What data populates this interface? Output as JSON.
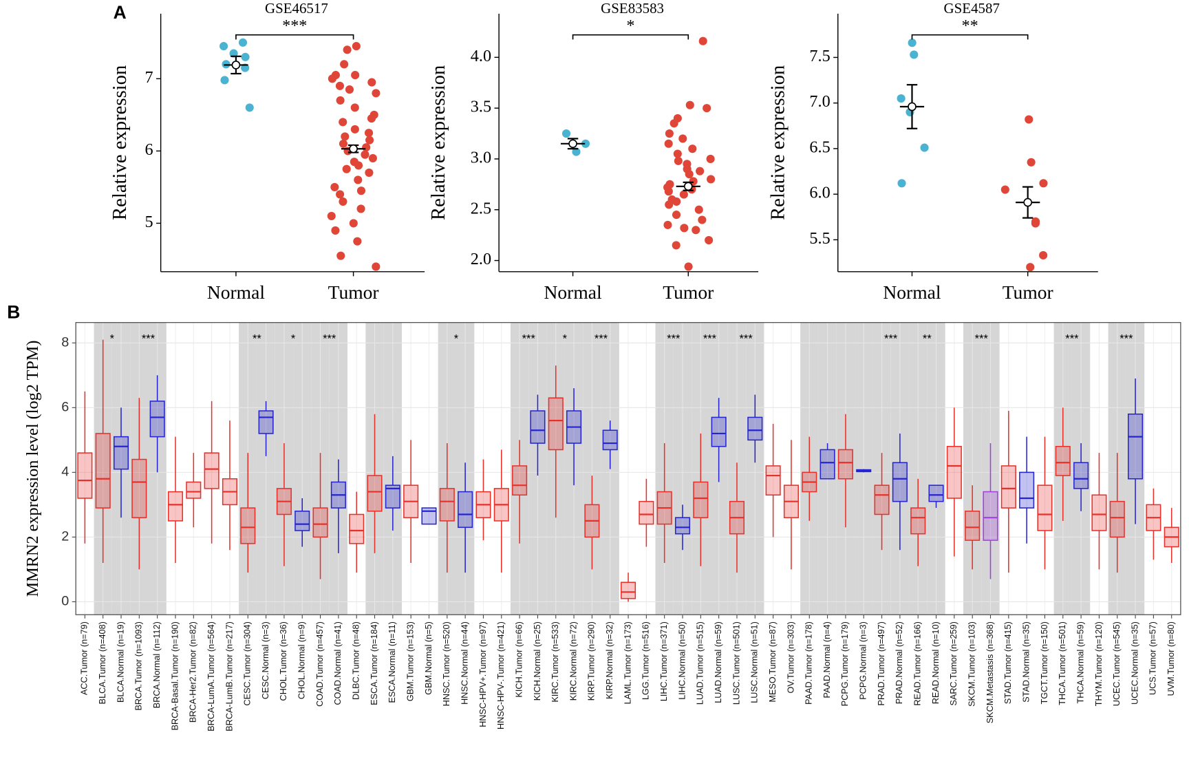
{
  "panel_labels": [
    "A",
    "B"
  ],
  "chart_data": [
    {
      "type": "strip",
      "title": "GSE46517",
      "ylabel": "Relative expression",
      "categories": [
        "Normal",
        "Tumor"
      ],
      "colors": [
        "#4ab3d1",
        "#e04638"
      ],
      "points": [
        [
          7.5,
          7.45,
          7.35,
          7.3,
          7.2,
          7.15,
          6.98,
          6.6
        ],
        [
          7.45,
          7.4,
          7.2,
          7.05,
          7.05,
          7.0,
          6.95,
          6.9,
          6.85,
          6.8,
          6.7,
          6.6,
          6.5,
          6.45,
          6.4,
          6.3,
          6.25,
          6.2,
          6.15,
          6.1,
          6.05,
          6.0,
          5.95,
          5.9,
          5.85,
          5.8,
          5.75,
          5.7,
          5.6,
          5.5,
          5.45,
          5.4,
          5.3,
          5.2,
          5.1,
          5.0,
          4.9,
          4.75,
          4.55,
          4.4
        ]
      ],
      "means": [
        7.19,
        6.03
      ],
      "errors": [
        0.12,
        0.05
      ],
      "significance": "***",
      "ylim": [
        4.33,
        7.9
      ],
      "yticks": [
        5,
        6,
        7
      ]
    },
    {
      "type": "strip",
      "title": "GSE83583",
      "ylabel": "Relative expression",
      "categories": [
        "Normal",
        "Tumor"
      ],
      "colors": [
        "#4ab3d1",
        "#e04638"
      ],
      "points": [
        [
          3.25,
          3.15,
          3.07
        ],
        [
          4.16,
          3.53,
          3.5,
          3.4,
          3.35,
          3.25,
          3.2,
          3.15,
          3.1,
          3.05,
          3.0,
          2.98,
          2.95,
          2.9,
          2.88,
          2.85,
          2.8,
          2.78,
          2.75,
          2.72,
          2.7,
          2.68,
          2.65,
          2.6,
          2.58,
          2.55,
          2.5,
          2.45,
          2.4,
          2.35,
          2.32,
          2.3,
          2.2,
          2.15,
          1.94
        ]
      ],
      "means": [
        3.15,
        2.73
      ],
      "errors": [
        0.05,
        0.04
      ],
      "significance": "*",
      "ylim": [
        1.89,
        4.43
      ],
      "yticks": [
        {
          "value": 2,
          "label": "2.0"
        },
        2.5,
        {
          "value": 3,
          "label": "3.0"
        },
        3.5,
        {
          "value": 4,
          "label": "4.0"
        }
      ]
    },
    {
      "type": "strip",
      "title": "GSE4587",
      "ylabel": "Relative expression",
      "categories": [
        "Normal",
        "Tumor"
      ],
      "colors": [
        "#4ab3d1",
        "#e04638"
      ],
      "points": [
        [
          7.66,
          7.53,
          7.05,
          6.9,
          6.51,
          6.12
        ],
        [
          6.82,
          6.35,
          6.12,
          6.05,
          5.7,
          5.68,
          5.33,
          5.2
        ]
      ],
      "means": [
        6.96,
        5.91
      ],
      "errors": [
        0.24,
        0.17
      ],
      "significance": "**",
      "ylim": [
        5.15,
        7.98
      ],
      "yticks": [
        5.5,
        {
          "value": 6,
          "label": "6.0"
        },
        6.5,
        {
          "value": 7,
          "label": "7.0"
        },
        7.5
      ]
    },
    {
      "type": "box",
      "ylabel": "MMRN2 expression level (log2 TPM)",
      "categories": [
        "ACC.Tumor (n=79)",
        "BLCA.Tumor (n=408)",
        "BLCA.Normal (n=19)",
        "BRCA.Tumor (n=1093)",
        "BRCA.Normal (n=112)",
        "BRCA-Basal.Tumor (n=190)",
        "BRCA-Her2.Tumor (n=82)",
        "BRCA-LumA.Tumor (n=564)",
        "BRCA-LumB.Tumor (n=217)",
        "CESC.Tumor (n=304)",
        "CESC.Normal (n=3)",
        "CHOL.Tumor (n=36)",
        "CHOL.Normal (n=9)",
        "COAD.Tumor (n=457)",
        "COAD.Normal (n=41)",
        "DLBC.Tumor (n=48)",
        "ESCA.Tumor (n=184)",
        "ESCA.Normal (n=11)",
        "GBM.Tumor (n=153)",
        "GBM.Normal (n=5)",
        "HNSC.Tumor (n=520)",
        "HNSC.Normal (n=44)",
        "HNSC-HPV+.Tumor (n=97)",
        "HNSC-HPV-.Tumor (n=421)",
        "KICH.Tumor (n=66)",
        "KICH.Normal (n=25)",
        "KIRC.Tumor (n=533)",
        "KIRC.Normal (n=72)",
        "KIRP.Tumor (n=290)",
        "KIRP.Normal (n=32)",
        "LAML.Tumor (n=173)",
        "LGG.Tumor (n=516)",
        "LIHC.Tumor (n=371)",
        "LIHC.Normal (n=50)",
        "LUAD.Tumor (n=515)",
        "LUAD.Normal (n=59)",
        "LUSC.Tumor (n=501)",
        "LUSC.Normal (n=51)",
        "MESO.Tumor (n=87)",
        "OV.Tumor (n=303)",
        "PAAD.Tumor (n=178)",
        "PAAD.Normal (n=4)",
        "PCPG.Tumor (n=179)",
        "PCPG.Normal (n=3)",
        "PRAD.Tumor (n=497)",
        "PRAD.Normal (n=52)",
        "READ.Tumor (n=166)",
        "READ.Normal (n=10)",
        "SARC.Tumor (n=259)",
        "SKCM.Tumor (n=103)",
        "SKCM.Metastasis (n=368)",
        "STAD.Tumor (n=415)",
        "STAD.Normal (n=35)",
        "TGCT.Tumor (n=150)",
        "THCA.Tumor (n=501)",
        "THCA.Normal (n=59)",
        "THYM.Tumor (n=120)",
        "UCEC.Tumor (n=545)",
        "UCEC.Normal (n=35)",
        "UCS.Tumor (n=57)",
        "UVM.Tumor (n=80)"
      ],
      "colors": [
        "#e8302a",
        "#e8302a",
        "#2424d0",
        "#e8302a",
        "#2424d0",
        "#e8302a",
        "#e8302a",
        "#e8302a",
        "#e8302a",
        "#e8302a",
        "#2424d0",
        "#e8302a",
        "#2424d0",
        "#e8302a",
        "#2424d0",
        "#e8302a",
        "#e8302a",
        "#2424d0",
        "#e8302a",
        "#2424d0",
        "#e8302a",
        "#2424d0",
        "#e8302a",
        "#e8302a",
        "#e8302a",
        "#2424d0",
        "#e8302a",
        "#2424d0",
        "#e8302a",
        "#2424d0",
        "#e8302a",
        "#e8302a",
        "#e8302a",
        "#2424d0",
        "#e8302a",
        "#2424d0",
        "#e8302a",
        "#2424d0",
        "#e8302a",
        "#e8302a",
        "#e8302a",
        "#2424d0",
        "#e8302a",
        "#2424d0",
        "#e8302a",
        "#2424d0",
        "#e8302a",
        "#2424d0",
        "#e8302a",
        "#e8302a",
        "#a040e0",
        "#e8302a",
        "#2424d0",
        "#e8302a",
        "#e8302a",
        "#2424d0",
        "#e8302a",
        "#e8302a",
        "#2424d0",
        "#e8302a",
        "#e8302a"
      ],
      "shaded": [
        false,
        true,
        true,
        true,
        true,
        false,
        false,
        false,
        false,
        true,
        true,
        true,
        true,
        true,
        true,
        false,
        true,
        true,
        false,
        false,
        true,
        true,
        false,
        false,
        true,
        true,
        true,
        true,
        true,
        true,
        false,
        false,
        true,
        true,
        true,
        true,
        true,
        true,
        false,
        false,
        true,
        true,
        true,
        true,
        true,
        true,
        true,
        true,
        false,
        true,
        true,
        false,
        false,
        false,
        true,
        true,
        false,
        true,
        true,
        false,
        false
      ],
      "significance": [
        null,
        "*",
        null,
        "***",
        null,
        null,
        null,
        null,
        null,
        "**",
        null,
        "*",
        null,
        "***",
        null,
        null,
        null,
        null,
        null,
        null,
        "*",
        null,
        null,
        null,
        "***",
        null,
        "*",
        null,
        "***",
        null,
        null,
        null,
        "***",
        null,
        "***",
        null,
        "***",
        null,
        null,
        null,
        null,
        null,
        null,
        null,
        "***",
        null,
        "**",
        null,
        null,
        "***",
        null,
        null,
        null,
        null,
        "***",
        null,
        null,
        "***",
        null,
        null,
        null
      ],
      "boxes": [
        {
          "min": 1.8,
          "q1": 3.2,
          "median": 3.75,
          "q3": 4.6,
          "max": 6.5
        },
        {
          "min": 1.2,
          "q1": 2.9,
          "median": 3.8,
          "q3": 5.2,
          "max": 8.1
        },
        {
          "min": 2.6,
          "q1": 4.1,
          "median": 4.8,
          "q3": 5.1,
          "max": 6.0
        },
        {
          "min": 1.0,
          "q1": 2.6,
          "median": 3.7,
          "q3": 4.4,
          "max": 6.3
        },
        {
          "min": 4.0,
          "q1": 5.1,
          "median": 5.7,
          "q3": 6.2,
          "max": 7.0
        },
        {
          "min": 1.2,
          "q1": 2.5,
          "median": 3.0,
          "q3": 3.4,
          "max": 5.1
        },
        {
          "min": 2.3,
          "q1": 3.2,
          "median": 3.4,
          "q3": 3.7,
          "max": 4.6
        },
        {
          "min": 1.8,
          "q1": 3.5,
          "median": 4.1,
          "q3": 4.6,
          "max": 6.2
        },
        {
          "min": 1.6,
          "q1": 3.0,
          "median": 3.4,
          "q3": 3.8,
          "max": 5.6
        },
        {
          "min": 0.9,
          "q1": 1.8,
          "median": 2.3,
          "q3": 2.9,
          "max": 4.6
        },
        {
          "min": 4.5,
          "q1": 5.2,
          "median": 5.7,
          "q3": 5.9,
          "max": 6.2
        },
        {
          "min": 1.1,
          "q1": 2.7,
          "median": 3.1,
          "q3": 3.5,
          "max": 4.9
        },
        {
          "min": 1.7,
          "q1": 2.2,
          "median": 2.4,
          "q3": 2.8,
          "max": 3.2
        },
        {
          "min": 0.7,
          "q1": 2.0,
          "median": 2.4,
          "q3": 2.9,
          "max": 4.6
        },
        {
          "min": 1.5,
          "q1": 2.9,
          "median": 3.3,
          "q3": 3.7,
          "max": 4.4
        },
        {
          "min": 0.9,
          "q1": 1.8,
          "median": 2.2,
          "q3": 2.7,
          "max": 3.4
        },
        {
          "min": 1.5,
          "q1": 2.8,
          "median": 3.4,
          "q3": 3.9,
          "max": 5.8
        },
        {
          "min": 2.2,
          "q1": 2.9,
          "median": 3.5,
          "q3": 3.6,
          "max": 4.5
        },
        {
          "min": 1.2,
          "q1": 2.6,
          "median": 3.1,
          "q3": 3.6,
          "max": 5.0
        },
        {
          "min": 2.4,
          "q1": 2.4,
          "median": 2.8,
          "q3": 2.9,
          "max": 2.9
        },
        {
          "min": 0.9,
          "q1": 2.5,
          "median": 3.1,
          "q3": 3.5,
          "max": 4.9
        },
        {
          "min": 0.9,
          "q1": 2.3,
          "median": 2.7,
          "q3": 3.4,
          "max": 4.3
        },
        {
          "min": 1.9,
          "q1": 2.6,
          "median": 3.0,
          "q3": 3.4,
          "max": 4.4
        },
        {
          "min": 0.9,
          "q1": 2.5,
          "median": 3.0,
          "q3": 3.5,
          "max": 4.7
        },
        {
          "min": 1.8,
          "q1": 3.3,
          "median": 3.6,
          "q3": 4.2,
          "max": 5.0
        },
        {
          "min": 3.9,
          "q1": 4.9,
          "median": 5.3,
          "q3": 5.9,
          "max": 6.4
        },
        {
          "min": 2.6,
          "q1": 4.7,
          "median": 5.6,
          "q3": 6.3,
          "max": 7.3
        },
        {
          "min": 3.6,
          "q1": 4.9,
          "median": 5.4,
          "q3": 5.9,
          "max": 6.6
        },
        {
          "min": 1.0,
          "q1": 2.0,
          "median": 2.5,
          "q3": 3.0,
          "max": 3.9
        },
        {
          "min": 4.1,
          "q1": 4.7,
          "median": 4.9,
          "q3": 5.3,
          "max": 5.6
        },
        {
          "min": 0.0,
          "q1": 0.1,
          "median": 0.3,
          "q3": 0.6,
          "max": 0.9
        },
        {
          "min": 1.7,
          "q1": 2.4,
          "median": 2.7,
          "q3": 3.1,
          "max": 3.8
        },
        {
          "min": 1.2,
          "q1": 2.4,
          "median": 2.9,
          "q3": 3.4,
          "max": 4.9
        },
        {
          "min": 1.6,
          "q1": 2.1,
          "median": 2.3,
          "q3": 2.6,
          "max": 3.0
        },
        {
          "min": 1.1,
          "q1": 2.6,
          "median": 3.2,
          "q3": 3.7,
          "max": 5.2
        },
        {
          "min": 3.7,
          "q1": 4.8,
          "median": 5.2,
          "q3": 5.7,
          "max": 6.3
        },
        {
          "min": 0.9,
          "q1": 2.1,
          "median": 2.6,
          "q3": 3.1,
          "max": 4.3
        },
        {
          "min": 4.3,
          "q1": 5.0,
          "median": 5.3,
          "q3": 5.7,
          "max": 6.4
        },
        {
          "min": 2.0,
          "q1": 3.3,
          "median": 3.9,
          "q3": 4.2,
          "max": 5.5
        },
        {
          "min": 1.0,
          "q1": 2.6,
          "median": 3.1,
          "q3": 3.6,
          "max": 5.0
        },
        {
          "min": 2.5,
          "q1": 3.4,
          "median": 3.7,
          "q3": 4.0,
          "max": 5.1
        },
        {
          "min": 3.8,
          "q1": 3.8,
          "median": 4.3,
          "q3": 4.7,
          "max": 4.9
        },
        {
          "min": 2.3,
          "q1": 3.8,
          "median": 4.3,
          "q3": 4.7,
          "max": 5.8
        },
        {
          "min": 4.0,
          "q1": 4.02,
          "median": 4.05,
          "q3": 4.08,
          "max": 4.1
        },
        {
          "min": 1.6,
          "q1": 2.7,
          "median": 3.3,
          "q3": 3.6,
          "max": 4.6
        },
        {
          "min": 1.6,
          "q1": 3.1,
          "median": 3.8,
          "q3": 4.3,
          "max": 5.2
        },
        {
          "min": 1.1,
          "q1": 2.1,
          "median": 2.6,
          "q3": 2.9,
          "max": 3.8
        },
        {
          "min": 2.9,
          "q1": 3.1,
          "median": 3.3,
          "q3": 3.6,
          "max": 3.6
        },
        {
          "min": 1.4,
          "q1": 3.2,
          "median": 4.2,
          "q3": 4.8,
          "max": 6.0
        },
        {
          "min": 1.0,
          "q1": 1.9,
          "median": 2.3,
          "q3": 2.8,
          "max": 3.6
        },
        {
          "min": 0.7,
          "q1": 1.9,
          "median": 2.6,
          "q3": 3.4,
          "max": 4.9
        },
        {
          "min": 0.9,
          "q1": 2.9,
          "median": 3.5,
          "q3": 4.2,
          "max": 5.9
        },
        {
          "min": 1.8,
          "q1": 2.9,
          "median": 3.2,
          "q3": 4.0,
          "max": 5.1
        },
        {
          "min": 1.0,
          "q1": 2.2,
          "median": 2.7,
          "q3": 3.6,
          "max": 5.1
        },
        {
          "min": 2.5,
          "q1": 3.9,
          "median": 4.3,
          "q3": 4.8,
          "max": 6.0
        },
        {
          "min": 2.8,
          "q1": 3.5,
          "median": 3.8,
          "q3": 4.3,
          "max": 4.9
        },
        {
          "min": 1.0,
          "q1": 2.2,
          "median": 2.7,
          "q3": 3.3,
          "max": 4.6
        },
        {
          "min": 0.9,
          "q1": 2.0,
          "median": 2.6,
          "q3": 3.1,
          "max": 4.6
        },
        {
          "min": 2.4,
          "q1": 3.8,
          "median": 5.1,
          "q3": 5.8,
          "max": 6.9
        },
        {
          "min": 1.3,
          "q1": 2.2,
          "median": 2.6,
          "q3": 3.0,
          "max": 3.5
        },
        {
          "min": 1.2,
          "q1": 1.7,
          "median": 2.0,
          "q3": 2.3,
          "max": 2.9
        }
      ],
      "ylim": [
        -0.4,
        8.63
      ],
      "yticks": [
        0,
        2,
        4,
        6,
        8
      ],
      "grid": true
    }
  ]
}
